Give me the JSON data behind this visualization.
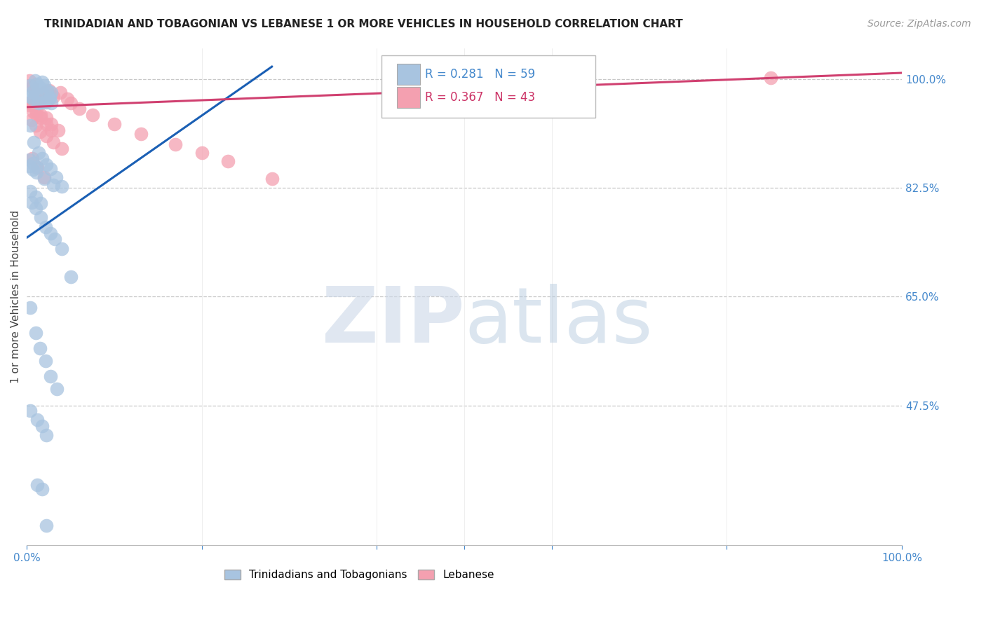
{
  "title": "TRINIDADIAN AND TOBAGONIAN VS LEBANESE 1 OR MORE VEHICLES IN HOUSEHOLD CORRELATION CHART",
  "source": "Source: ZipAtlas.com",
  "ylabel": "1 or more Vehicles in Household",
  "xlim": [
    0.0,
    1.0
  ],
  "ylim": [
    0.25,
    1.05
  ],
  "ytick_vals": [
    0.475,
    0.65,
    0.825,
    1.0
  ],
  "ytick_labels": [
    "47.5%",
    "65.0%",
    "82.5%",
    "100.0%"
  ],
  "xtick_vals": [
    0.0,
    0.2,
    0.4,
    0.5,
    0.6,
    0.8,
    1.0
  ],
  "xtick_labels": [
    "0.0%",
    "",
    "",
    "",
    "",
    "",
    "100.0%"
  ],
  "blue_R": 0.281,
  "blue_N": 59,
  "pink_R": 0.367,
  "pink_N": 43,
  "blue_color": "#a8c4e0",
  "pink_color": "#f4a0b0",
  "blue_edge_color": "#7aaac8",
  "pink_edge_color": "#e888a0",
  "blue_line_color": "#1a5fb4",
  "pink_line_color": "#d04070",
  "title_fontsize": 11,
  "source_fontsize": 10,
  "tick_color": "#4488cc",
  "grid_color": "#c8c8c8",
  "watermark_zip_color": "#c0d4e8",
  "watermark_atlas_color": "#b8cce0",
  "blue_line_x": [
    0.0,
    0.28
  ],
  "blue_line_y": [
    0.745,
    1.02
  ],
  "pink_line_x": [
    0.0,
    1.0
  ],
  "pink_line_y": [
    0.955,
    1.01
  ],
  "blue_x": [
    0.004,
    0.007,
    0.009,
    0.011,
    0.014,
    0.017,
    0.02,
    0.023,
    0.026,
    0.028,
    0.004,
    0.007,
    0.01,
    0.013,
    0.016,
    0.019,
    0.022,
    0.025,
    0.028,
    0.004,
    0.008,
    0.013,
    0.017,
    0.022,
    0.027,
    0.033,
    0.04,
    0.005,
    0.01,
    0.016,
    0.021,
    0.027,
    0.032,
    0.04,
    0.05,
    0.004,
    0.01,
    0.015,
    0.021,
    0.027,
    0.034,
    0.004,
    0.012,
    0.017,
    0.022,
    0.012,
    0.017,
    0.022,
    0.004,
    0.01,
    0.016,
    0.003,
    0.007,
    0.011,
    0.02,
    0.03,
    0.003,
    0.007,
    0.011
  ],
  "blue_y": [
    0.99,
    0.98,
    0.998,
    0.992,
    0.987,
    0.995,
    0.99,
    0.982,
    0.97,
    0.978,
    0.972,
    0.968,
    0.975,
    0.962,
    0.978,
    0.963,
    0.963,
    0.968,
    0.962,
    0.925,
    0.898,
    0.882,
    0.872,
    0.862,
    0.856,
    0.842,
    0.827,
    0.802,
    0.792,
    0.778,
    0.762,
    0.752,
    0.743,
    0.727,
    0.682,
    0.632,
    0.592,
    0.567,
    0.547,
    0.522,
    0.502,
    0.467,
    0.452,
    0.442,
    0.427,
    0.347,
    0.34,
    0.282,
    0.82,
    0.81,
    0.8,
    0.86,
    0.855,
    0.85,
    0.84,
    0.83,
    0.87,
    0.865,
    0.858
  ],
  "pink_x": [
    0.003,
    0.006,
    0.009,
    0.012,
    0.016,
    0.02,
    0.025,
    0.03,
    0.038,
    0.046,
    0.003,
    0.007,
    0.011,
    0.016,
    0.022,
    0.028,
    0.036,
    0.05,
    0.06,
    0.075,
    0.1,
    0.13,
    0.003,
    0.007,
    0.011,
    0.016,
    0.022,
    0.028,
    0.005,
    0.01,
    0.015,
    0.022,
    0.03,
    0.04,
    0.17,
    0.2,
    0.23,
    0.28,
    0.5,
    0.85,
    0.006,
    0.012,
    0.02
  ],
  "pink_y": [
    0.998,
    0.988,
    0.978,
    0.972,
    0.968,
    0.978,
    0.982,
    0.972,
    0.978,
    0.968,
    0.962,
    0.958,
    0.948,
    0.942,
    0.938,
    0.928,
    0.918,
    0.962,
    0.952,
    0.942,
    0.928,
    0.912,
    0.958,
    0.948,
    0.942,
    0.938,
    0.928,
    0.918,
    0.935,
    0.925,
    0.915,
    0.908,
    0.898,
    0.888,
    0.895,
    0.882,
    0.868,
    0.84,
    0.985,
    1.002,
    0.872,
    0.858,
    0.842
  ]
}
